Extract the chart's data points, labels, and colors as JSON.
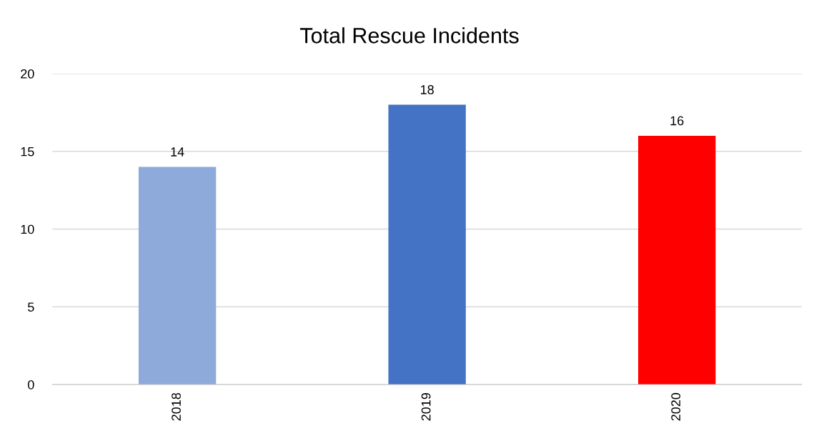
{
  "chart_data": {
    "type": "bar",
    "title": "Total Rescue Incidents",
    "categories": [
      "2018",
      "2019",
      "2020"
    ],
    "values": [
      14,
      18,
      16
    ],
    "colors": [
      "#8eaadb",
      "#4472c4",
      "#ff0000"
    ],
    "ylim": [
      0,
      20
    ],
    "yticks": [
      0,
      5,
      10,
      15,
      20
    ],
    "grid": "y",
    "data_labels": true
  }
}
